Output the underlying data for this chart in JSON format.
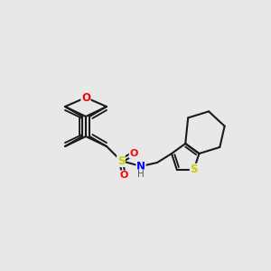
{
  "background_color": "#e8e8e8",
  "bond_color": "#1a1a1a",
  "bond_lw": 1.5,
  "atom_colors": {
    "O": "#ff0000",
    "S": "#cccc00",
    "N": "#0000ff",
    "H": "#555555"
  },
  "font_size": 7.5
}
